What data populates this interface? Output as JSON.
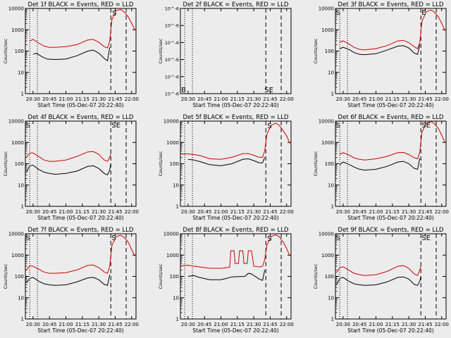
{
  "colors": {
    "background": "#ececec",
    "events": "#000000",
    "lld": "#d00000",
    "axis": "#000000"
  },
  "chart_data": [
    {
      "type": "line",
      "title": "Det 1f BLACK = Events, RED = LLD",
      "ylabel": "Counts/sec",
      "xlabel": "Start Time (05-Dec-07 20:22:40)",
      "x_ticks": [
        "20:30",
        "20:45",
        "21:00",
        "21:15",
        "21:30",
        "21:45",
        "22:00"
      ],
      "y_ticks": [
        "1",
        "10",
        "100",
        "1000",
        "10000"
      ],
      "y_scale": "log",
      "ylim": [
        1,
        10000
      ],
      "markers": [
        "S"
      ],
      "series": [
        {
          "color": "red",
          "x": [
            "20:27",
            "20:30",
            "20:35",
            "20:40",
            "20:45",
            "20:50",
            "21:00",
            "21:10",
            "21:20",
            "21:25",
            "21:30",
            "21:35",
            "21:38",
            "21:40",
            "21:42",
            "21:46",
            "21:50",
            "21:53",
            "21:57",
            "22:00",
            "22:03"
          ],
          "y": [
            300,
            350,
            240,
            170,
            150,
            150,
            160,
            200,
            330,
            350,
            260,
            160,
            140,
            300,
            3000,
            8000,
            9000,
            7000,
            4000,
            2000,
            1000
          ]
        },
        {
          "color": "black",
          "x": [
            "20:30",
            "20:33",
            "20:38",
            "20:43",
            "20:50",
            "21:00",
            "21:10",
            "21:20",
            "21:25",
            "21:30",
            "21:35",
            "21:38",
            "21:40"
          ],
          "y": [
            70,
            80,
            55,
            42,
            40,
            42,
            60,
            100,
            110,
            80,
            45,
            35,
            150
          ]
        }
      ]
    },
    {
      "type": "line",
      "title": "Det 2f BLACK = Events, RED = LLD",
      "ylabel": "Counts/sec",
      "xlabel": "Start Time (05-Dec-07 20:22:40)",
      "x_ticks": [
        "20:30",
        "20:45",
        "21:00",
        "21:15",
        "21:30",
        "21:45",
        "22:00"
      ],
      "y_ticks": [
        "10^-6",
        "10^-6",
        "10^-6",
        "10^-6",
        "10^-6",
        "10^-6"
      ],
      "y_scale": "linear",
      "markers": [
        "B",
        "SE"
      ],
      "series": []
    },
    {
      "type": "line",
      "title": "Det 3f BLACK = Events, RED = LLD",
      "ylabel": "Counts/sec",
      "xlabel": "Start Time (05-Dec-07 20:22:40)",
      "x_ticks": [
        "20:30",
        "20:45",
        "21:00",
        "21:15",
        "21:30",
        "21:45",
        "22:00"
      ],
      "y_ticks": [
        "1",
        "10",
        "100",
        "1000",
        "10000"
      ],
      "y_scale": "log",
      "ylim": [
        1,
        10000
      ],
      "markers": [
        "S",
        "E"
      ],
      "series": [
        {
          "color": "red",
          "x": [
            "20:27",
            "20:30",
            "20:35",
            "20:40",
            "20:45",
            "20:50",
            "21:00",
            "21:10",
            "21:20",
            "21:25",
            "21:30",
            "21:35",
            "21:38",
            "21:40",
            "21:42",
            "21:46",
            "21:50",
            "21:53",
            "21:57",
            "22:00",
            "22:03"
          ],
          "y": [
            260,
            300,
            220,
            150,
            120,
            115,
            130,
            180,
            300,
            320,
            250,
            160,
            130,
            250,
            2500,
            7000,
            8500,
            7000,
            4000,
            2000,
            900
          ]
        },
        {
          "color": "black",
          "x": [
            "20:27",
            "20:30",
            "20:35",
            "20:40",
            "20:45",
            "20:50",
            "21:00",
            "21:10",
            "21:20",
            "21:25",
            "21:30",
            "21:35",
            "21:38",
            "21:40"
          ],
          "y": [
            130,
            150,
            120,
            85,
            70,
            68,
            75,
            110,
            170,
            180,
            140,
            80,
            70,
            200
          ]
        }
      ]
    },
    {
      "type": "line",
      "title": "Det 4f BLACK = Events, RED = LLD",
      "ylabel": "Counts/sec",
      "xlabel": "Start Time (05-Dec-07 20:22:40)",
      "x_ticks": [
        "20:30",
        "20:45",
        "21:00",
        "21:15",
        "21:30",
        "21:45",
        "22:00"
      ],
      "y_ticks": [
        "1",
        "10",
        "100",
        "1000",
        "10000"
      ],
      "y_scale": "log",
      "ylim": [
        1,
        10000
      ],
      "markers": [
        "S",
        "SE"
      ],
      "series": [
        {
          "color": "red",
          "x": [
            "20:24",
            "20:27",
            "20:30",
            "20:35",
            "20:40",
            "20:45",
            "20:50",
            "21:00",
            "21:10",
            "21:20",
            "21:25",
            "21:30",
            "21:35",
            "21:38",
            "21:40",
            "21:41"
          ],
          "y": [
            200,
            320,
            320,
            220,
            150,
            130,
            130,
            150,
            220,
            360,
            370,
            280,
            150,
            130,
            200,
            300
          ]
        },
        {
          "color": "black",
          "x": [
            "20:24",
            "20:27",
            "20:30",
            "20:35",
            "20:40",
            "20:45",
            "20:50",
            "21:00",
            "21:10",
            "21:20",
            "21:25",
            "21:30",
            "21:35",
            "21:38",
            "21:40",
            "21:41"
          ],
          "y": [
            40,
            80,
            85,
            55,
            40,
            35,
            32,
            35,
            45,
            75,
            80,
            60,
            35,
            30,
            50,
            100
          ]
        }
      ]
    },
    {
      "type": "line",
      "title": "Det 5f BLACK = Events, RED = LLD",
      "ylabel": "Counts/sec",
      "xlabel": "Start Time (05-Dec-07 20:22:40)",
      "x_ticks": [
        "20:30",
        "20:45",
        "21:00",
        "21:15",
        "21:30",
        "21:45",
        "22:00"
      ],
      "y_ticks": [
        "1",
        "10",
        "100",
        "1000",
        "10000"
      ],
      "y_scale": "log",
      "ylim": [
        1,
        10000
      ],
      "markers": [
        "S"
      ],
      "series": [
        {
          "color": "red",
          "x": [
            "20:24",
            "20:30",
            "20:40",
            "20:50",
            "21:00",
            "21:10",
            "21:20",
            "21:25",
            "21:30",
            "21:35",
            "21:38",
            "21:40",
            "21:42",
            "21:46",
            "21:50",
            "21:53",
            "21:57",
            "22:00",
            "22:03"
          ],
          "y": [
            280,
            290,
            250,
            170,
            160,
            200,
            300,
            300,
            250,
            200,
            200,
            400,
            2500,
            6500,
            8000,
            6500,
            3500,
            2000,
            900
          ]
        },
        {
          "color": "black",
          "x": [
            "20:30",
            "20:35",
            "20:40",
            "20:50",
            "21:00",
            "21:10",
            "21:20",
            "21:25",
            "21:30",
            "21:35",
            "21:38",
            "21:40"
          ],
          "y": [
            160,
            150,
            130,
            90,
            80,
            100,
            160,
            170,
            140,
            110,
            110,
            200
          ]
        }
      ]
    },
    {
      "type": "line",
      "title": "Det 6f BLACK = Events, RED = LLD",
      "ylabel": "Counts/sec",
      "xlabel": "Start Time (05-Dec-07 20:22:40)",
      "x_ticks": [
        "20:30",
        "20:45",
        "21:00",
        "21:15",
        "21:30",
        "21:45",
        "22:00"
      ],
      "y_ticks": [
        "1",
        "10",
        "100",
        "1000",
        "10000"
      ],
      "y_scale": "log",
      "ylim": [
        1,
        10000
      ],
      "markers": [
        "S",
        "SE"
      ],
      "series": [
        {
          "color": "red",
          "x": [
            "20:27",
            "20:30",
            "20:35",
            "20:40",
            "20:45",
            "20:50",
            "21:00",
            "21:10",
            "21:20",
            "21:25",
            "21:30",
            "21:35",
            "21:38",
            "21:40",
            "21:42",
            "21:46",
            "21:50",
            "21:53",
            "21:57",
            "22:00",
            "22:03"
          ],
          "y": [
            280,
            330,
            260,
            190,
            160,
            150,
            170,
            220,
            330,
            340,
            270,
            190,
            170,
            350,
            3000,
            8000,
            9500,
            8000,
            4500,
            2200,
            1000
          ]
        },
        {
          "color": "black",
          "x": [
            "20:27",
            "20:30",
            "20:35",
            "20:40",
            "20:45",
            "20:50",
            "21:00",
            "21:10",
            "21:20",
            "21:25",
            "21:30",
            "21:35",
            "21:38",
            "21:40"
          ],
          "y": [
            90,
            120,
            95,
            70,
            55,
            50,
            55,
            75,
            120,
            130,
            100,
            60,
            55,
            180
          ]
        }
      ]
    },
    {
      "type": "line",
      "title": "Det 7f BLACK = Events, RED = LLD",
      "ylabel": "Counts/sec",
      "xlabel": "Start Time (05-Dec-07 20:22:40)",
      "x_ticks": [
        "20:30",
        "20:45",
        "21:00",
        "21:15",
        "21:30",
        "21:45",
        "22:00"
      ],
      "y_ticks": [
        "1",
        "10",
        "100",
        "1000",
        "10000"
      ],
      "y_scale": "log",
      "ylim": [
        1,
        10000
      ],
      "markers": [
        "S",
        "S"
      ],
      "series": [
        {
          "color": "red",
          "x": [
            "20:24",
            "20:27",
            "20:30",
            "20:35",
            "20:40",
            "20:45",
            "20:50",
            "21:00",
            "21:10",
            "21:20",
            "21:25",
            "21:30",
            "21:35",
            "21:38",
            "21:40",
            "21:42",
            "21:46",
            "21:50",
            "21:53",
            "21:57",
            "22:00",
            "22:03"
          ],
          "y": [
            200,
            320,
            300,
            220,
            160,
            140,
            140,
            150,
            200,
            330,
            340,
            260,
            160,
            140,
            300,
            2800,
            7500,
            8500,
            7000,
            4000,
            1800,
            900
          ]
        },
        {
          "color": "black",
          "x": [
            "20:24",
            "20:27",
            "20:30",
            "20:35",
            "20:40",
            "20:45",
            "20:50",
            "21:00",
            "21:10",
            "21:20",
            "21:25",
            "21:30",
            "21:35",
            "21:38",
            "21:40"
          ],
          "y": [
            50,
            80,
            90,
            60,
            45,
            40,
            38,
            40,
            55,
            85,
            90,
            70,
            42,
            38,
            120
          ]
        }
      ]
    },
    {
      "type": "line",
      "title": "Det 8f BLACK = Events, RED = LLD",
      "ylabel": "Counts/sec",
      "xlabel": "Start Time (05-Dec-07 20:22:40)",
      "x_ticks": [
        "20:30",
        "20:45",
        "21:00",
        "21:15",
        "21:30",
        "21:45",
        "22:00"
      ],
      "y_ticks": [
        "1",
        "10",
        "100",
        "1000",
        "10000"
      ],
      "y_scale": "log",
      "ylim": [
        1,
        10000
      ],
      "markers": [
        "S"
      ],
      "series": [
        {
          "color": "red",
          "x": [
            "20:24",
            "20:30",
            "20:40",
            "20:50",
            "21:00",
            "21:08",
            "21:09",
            "21:12",
            "21:13",
            "21:16",
            "21:17",
            "21:20",
            "21:21",
            "21:24",
            "21:25",
            "21:28",
            "21:30",
            "21:35",
            "21:38",
            "21:40",
            "21:42",
            "21:46",
            "21:50",
            "21:53",
            "21:57",
            "22:00",
            "22:03"
          ],
          "y": [
            320,
            330,
            280,
            240,
            240,
            270,
            1600,
            1600,
            400,
            400,
            1600,
            1600,
            400,
            400,
            1600,
            1600,
            300,
            280,
            300,
            600,
            3000,
            7500,
            9000,
            7500,
            4000,
            2000,
            900
          ]
        },
        {
          "color": "black",
          "x": [
            "20:30",
            "20:35",
            "20:40",
            "20:50",
            "21:00",
            "21:05",
            "21:10",
            "21:22",
            "21:25",
            "21:28",
            "21:35",
            "21:38",
            "21:40"
          ],
          "y": [
            100,
            110,
            90,
            70,
            70,
            80,
            95,
            100,
            140,
            130,
            75,
            65,
            200
          ]
        }
      ]
    },
    {
      "type": "line",
      "title": "Det 9f BLACK = Events, RED = LLD",
      "ylabel": "Counts/sec",
      "xlabel": "Start Time (05-Dec-07 20:22:40)",
      "x_ticks": [
        "20:30",
        "20:45",
        "21:00",
        "21:15",
        "21:30",
        "21:45",
        "22:00"
      ],
      "y_ticks": [
        "1",
        "10",
        "100",
        "1000",
        "10000"
      ],
      "y_scale": "log",
      "ylim": [
        1,
        10000
      ],
      "markers": [
        "S",
        "SE"
      ],
      "series": [
        {
          "color": "red",
          "x": [
            "20:24",
            "20:27",
            "20:30",
            "20:35",
            "20:40",
            "20:45",
            "20:50",
            "21:00",
            "21:10",
            "21:20",
            "21:25",
            "21:30",
            "21:35",
            "21:38",
            "21:40",
            "21:41"
          ],
          "y": [
            150,
            260,
            280,
            200,
            140,
            120,
            110,
            120,
            170,
            300,
            320,
            240,
            130,
            110,
            200,
            300
          ]
        },
        {
          "color": "black",
          "x": [
            "20:24",
            "20:27",
            "20:30",
            "20:35",
            "20:40",
            "20:45",
            "20:50",
            "21:00",
            "21:10",
            "21:20",
            "21:25",
            "21:30",
            "21:35",
            "21:38",
            "21:40",
            "21:41"
          ],
          "y": [
            40,
            80,
            90,
            60,
            45,
            40,
            38,
            40,
            55,
            90,
            95,
            75,
            42,
            38,
            60,
            100
          ]
        }
      ]
    }
  ]
}
